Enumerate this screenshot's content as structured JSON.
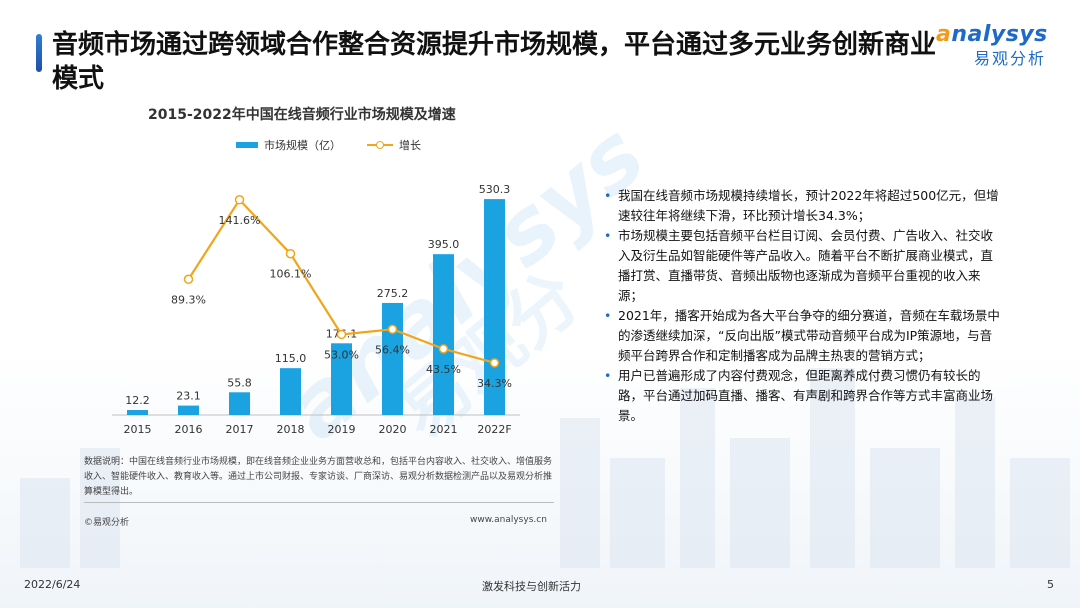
{
  "page_title": "音频市场通过跨领域合作整合资源提升市场规模，平台通过多元业务创新商业模式",
  "logo": {
    "en": "nalysys",
    "en_a": "a",
    "cn": "易观分析"
  },
  "watermark": {
    "en": "analysys",
    "cn": "易观分"
  },
  "chart_data": {
    "type": "bar",
    "title": "2015-2022年中国在线音频行业市场规模及增速",
    "categories": [
      "2015",
      "2016",
      "2017",
      "2018",
      "2019",
      "2020",
      "2021",
      "2022F"
    ],
    "series": [
      {
        "name": "市场规模（亿）",
        "type": "bar",
        "color": "#1ba2e0",
        "values": [
          12.2,
          23.1,
          55.8,
          115.0,
          176.1,
          275.2,
          395.0,
          530.3
        ],
        "labels": [
          "12.2",
          "23.1",
          "55.8",
          "115.0",
          "176.1",
          "275.2",
          "395.0",
          "530.3"
        ]
      },
      {
        "name": "增长",
        "type": "line",
        "color": "#f2a51a",
        "values": [
          null,
          89.3,
          141.6,
          106.1,
          53.0,
          56.4,
          43.5,
          34.3
        ],
        "labels": [
          "",
          "89.3%",
          "141.6%",
          "106.1%",
          "53.0%",
          "56.4%",
          "43.5%",
          "34.3%"
        ]
      }
    ],
    "ylim_bar": [
      0,
      560
    ],
    "ylim_line": [
      0,
      150
    ],
    "legend_position": "top",
    "grid": false
  },
  "note": "数据说明：中国在线音频行业市场规模，即在线音频企业业务方面营收总和，包括平台内容收入、社交收入、增值服务收入、智能硬件收入、教育收入等。通过上市公司财报、专家访谈、厂商深访、易观分析数据检测产品以及易观分析推算模型得出。",
  "copyright": "©易观分析",
  "site": "www.analysys.cn",
  "bullets": [
    "我国在线音频市场规模持续增长，预计2022年将超过500亿元，但增速较往年将继续下滑，环比预计增长34.3%；",
    "市场规模主要包括音频平台栏目订阅、会员付费、广告收入、社交收入及衍生品如智能硬件等产品收入。随着平台不断扩展商业模式，直播打赏、直播带货、音频出版物也逐渐成为音频平台重视的收入来源；",
    "2021年，播客开始成为各大平台争夺的细分赛道，音频在车载场景中的渗透继续加深，“反向出版”模式带动音频平台成为IP策源地，与音频平台跨界合作和定制播客成为品牌主热衷的营销方式；",
    "用户已普遍形成了内容付费观念，但距离养成付费习惯仍有较长的路，平台通过加码直播、播客、有声剧和跨界合作等方式丰富商业场景。"
  ],
  "footer": {
    "date": "2022/6/24",
    "slogan": "激发科技与创新活力",
    "page": "5"
  }
}
